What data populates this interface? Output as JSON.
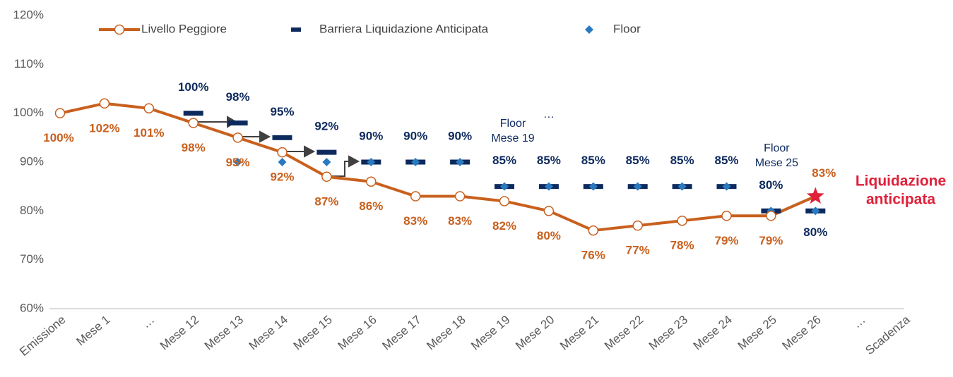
{
  "chart_data": {
    "type": "line",
    "categories": [
      "Emissione",
      "Mese 1",
      "…",
      "Mese 12",
      "Mese 13",
      "Mese 14",
      "Mese 15",
      "Mese 16",
      "Mese 17",
      "Mese 18",
      "Mese 19",
      "Mese 20",
      "Mese 21",
      "Mese 22",
      "Mese 23",
      "Mese 24",
      "Mese 25",
      "Mese 26",
      "…",
      "Scadenza"
    ],
    "series": [
      {
        "name": "Livello Peggiore",
        "color": "#c8601e",
        "values": [
          100,
          102,
          101,
          98,
          95,
          92,
          87,
          86,
          83,
          83,
          82,
          80,
          76,
          77,
          78,
          79,
          79,
          83,
          null,
          null
        ],
        "value_labels": [
          "100%",
          "102%",
          "101%",
          "98%",
          "95%",
          "92%",
          "87%",
          "86%",
          "83%",
          "83%",
          "82%",
          "80%",
          "76%",
          "77%",
          "78%",
          "79%",
          "79%",
          "83%",
          null,
          null
        ]
      },
      {
        "name": "Barriera Liquidazione Anticipata",
        "color": "#0d2a5e",
        "values": [
          null,
          null,
          null,
          100,
          98,
          95,
          92,
          90,
          90,
          90,
          85,
          85,
          85,
          85,
          85,
          85,
          80,
          80,
          null,
          null
        ],
        "value_labels": [
          null,
          null,
          null,
          "100%",
          "98%",
          "95%",
          "92%",
          "90%",
          "90%",
          "90%",
          "85%",
          "85%",
          "85%",
          "85%",
          "85%",
          "85%",
          "80%",
          "80%",
          null,
          null
        ]
      },
      {
        "name": "Floor",
        "color": "#2a7abf",
        "values": [
          null,
          null,
          null,
          null,
          90,
          90,
          90,
          90,
          90,
          90,
          85,
          85,
          85,
          85,
          85,
          85,
          80,
          80,
          null,
          null
        ]
      }
    ],
    "ylim": [
      60,
      120
    ],
    "yticks": [
      {
        "value": 60,
        "label": "60%"
      },
      {
        "value": 70,
        "label": "70%"
      },
      {
        "value": 80,
        "label": "80%"
      },
      {
        "value": 90,
        "label": "90%"
      },
      {
        "value": 100,
        "label": "100%"
      },
      {
        "value": 110,
        "label": "110%"
      },
      {
        "value": 120,
        "label": "120%"
      }
    ],
    "annotations": [
      {
        "lines": [
          "Floor",
          "Mese 19"
        ]
      },
      {
        "lines": [
          "…"
        ]
      },
      {
        "lines": [
          "Floor",
          "Mese 25"
        ]
      },
      {
        "lines": [
          "Liquidazione",
          "anticipata"
        ],
        "color": "#e0203a"
      }
    ]
  }
}
